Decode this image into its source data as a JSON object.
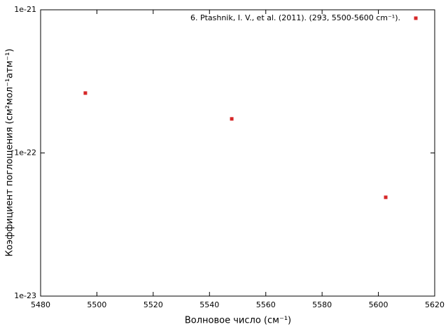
{
  "chart_data": {
    "type": "scatter",
    "x_label": "Волновое число (см⁻¹)",
    "y_label": "Коэффициент поглощения (см²мол⁻¹атм⁻¹)",
    "xlim": [
      5480,
      5620
    ],
    "xticks": [
      5480,
      5500,
      5520,
      5540,
      5560,
      5580,
      5600,
      5620
    ],
    "ylim": [
      1e-23,
      1e-21
    ],
    "yticks": [
      1e-23,
      1e-22,
      1e-21
    ],
    "log_y": true,
    "grid": false,
    "legend": "top-right",
    "series": [
      {
        "name": "6. Ptashnik, I. V., et al. (2011). (293, 5500-5600 cm⁻¹).",
        "color": "#d62728",
        "x": [
          5495.9,
          5547.9,
          5602.6
        ],
        "values": [
          2.62e-22,
          1.73e-22,
          4.9e-23
        ]
      }
    ]
  }
}
